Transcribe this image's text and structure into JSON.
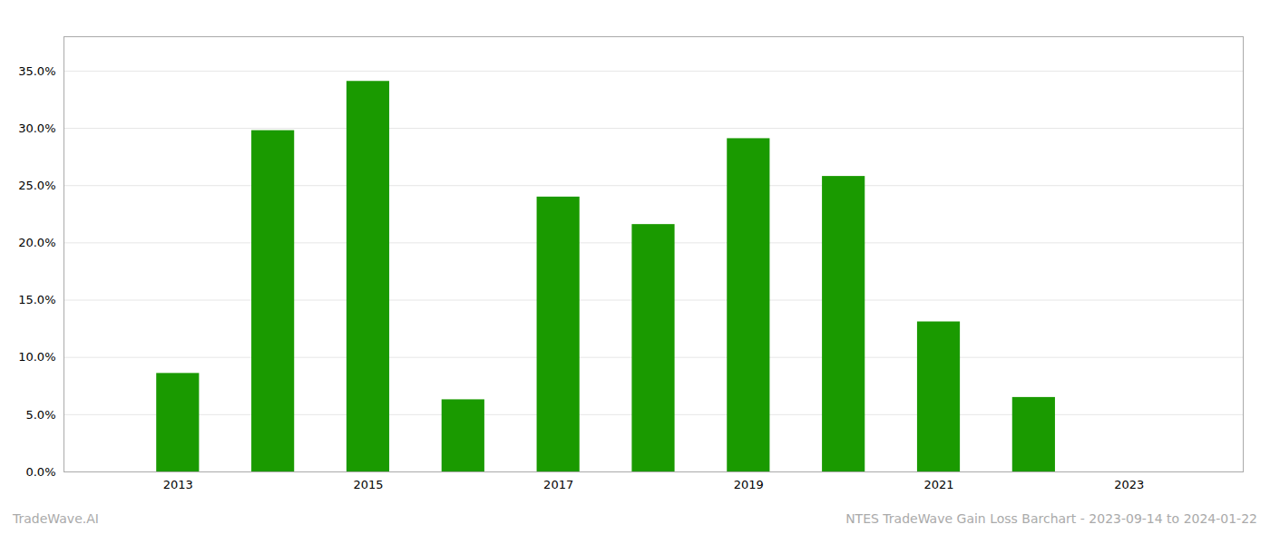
{
  "chart_data": {
    "type": "bar",
    "x": [
      2013,
      2014,
      2015,
      2016,
      2017,
      2018,
      2019,
      2020,
      2021,
      2022,
      2023
    ],
    "values": [
      0.086,
      0.298,
      0.341,
      0.063,
      0.24,
      0.216,
      0.291,
      0.258,
      0.131,
      0.065,
      0.0
    ],
    "color": "#1a9a00",
    "xlim": [
      2011.8,
      2024.2
    ],
    "xticks": [
      2013,
      2015,
      2017,
      2019,
      2021,
      2023
    ],
    "ylim": [
      0,
      0.38
    ],
    "yticks": [
      {
        "value": 0.0,
        "label": "0.0%"
      },
      {
        "value": 0.05,
        "label": "5.0%"
      },
      {
        "value": 0.1,
        "label": "10.0%"
      },
      {
        "value": 0.15,
        "label": "15.0%"
      },
      {
        "value": 0.2,
        "label": "20.0%"
      },
      {
        "value": 0.25,
        "label": "25.0%"
      },
      {
        "value": 0.3,
        "label": "30.0%"
      },
      {
        "value": 0.35,
        "label": "35.0%"
      }
    ],
    "grid": true,
    "annotations": [
      "TradeWave.AI",
      "NTES TradeWave Gain Loss Barchart - 2023-09-14 to 2024-01-22"
    ]
  }
}
